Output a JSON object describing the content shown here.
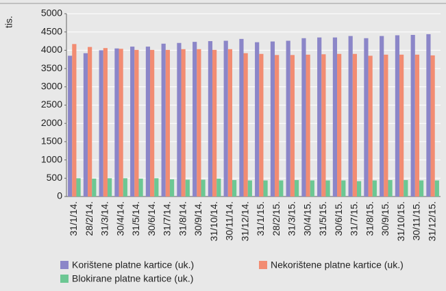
{
  "chart_data": {
    "type": "bar",
    "y_label": "tis.",
    "categories": [
      "31/1/14.",
      "28/2/14.",
      "31/3/14.",
      "30/4/14.",
      "31/5/14.",
      "30/6/14.",
      "31/7/14.",
      "31/8/14.",
      "30/9/14.",
      "31/10/14.",
      "30/11/14.",
      "31/12/14.",
      "31/1/15.",
      "28/2/15.",
      "31/3/15.",
      "30/4/15.",
      "31/5/15.",
      "30/6/15.",
      "31/7/15.",
      "31/8/15.",
      "30/9/15.",
      "31/10/15.",
      "30/11/15.",
      "31/12/15."
    ],
    "series": [
      {
        "name": "Korištene platne kartice (uk.)",
        "color": "#8b86c8",
        "values": [
          3850,
          3920,
          4000,
          4050,
          4100,
          4100,
          4180,
          4200,
          4230,
          4250,
          4260,
          4310,
          4220,
          4240,
          4260,
          4330,
          4350,
          4350,
          4390,
          4330,
          4390,
          4410,
          4420,
          4440
        ]
      },
      {
        "name": "Nekorištene platne kartice (uk.)",
        "color": "#f28c72",
        "values": [
          4170,
          4090,
          4060,
          4040,
          4010,
          4010,
          4010,
          4030,
          4030,
          4010,
          4030,
          3920,
          3900,
          3870,
          3870,
          3880,
          3890,
          3900,
          3900,
          3850,
          3880,
          3880,
          3880,
          3860
        ]
      },
      {
        "name": "Blokirane platne kartice (uk.)",
        "color": "#6cc793",
        "values": [
          500,
          490,
          500,
          500,
          490,
          500,
          470,
          460,
          460,
          490,
          450,
          440,
          440,
          440,
          450,
          440,
          440,
          440,
          420,
          440,
          450,
          450,
          440,
          440
        ]
      }
    ],
    "ylim": [
      0,
      5000
    ],
    "yticks": [
      0,
      500,
      1000,
      1500,
      2000,
      2500,
      3000,
      3500,
      4000,
      4500,
      5000
    ],
    "grid": true
  }
}
